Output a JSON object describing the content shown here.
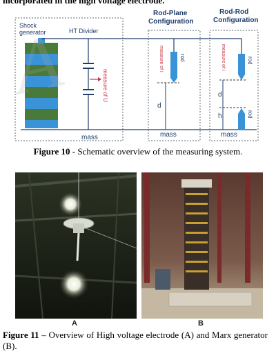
{
  "intro_fragment": "incorporated in the high voltage electrode.",
  "schematic": {
    "shock_generator": [
      "Shock",
      "generator"
    ],
    "ht_divider": "HT Divider",
    "measure_u": "measure of U",
    "rod_plane_title": [
      "Rod-Plane",
      "Configuration"
    ],
    "rod_rod_title": [
      "Rod-Rod",
      "Configuration"
    ],
    "measure_i": "measure of i",
    "rod": "rod",
    "d": "d",
    "h": "h",
    "mass": "mass",
    "colors": {
      "green": "#4a7a3a",
      "blue": "#3a93d6",
      "line": "#1f3d6b",
      "red": "#c8323c"
    }
  },
  "figure10": {
    "label": "Figure 10",
    "caption": " - Schematic overview of the measuring system."
  },
  "photos": {
    "a_label": "A",
    "b_label": "B"
  },
  "figure11": {
    "label": "Figure 11",
    "caption": " – Overview of High voltage electrode (A) and Marx generator (B)."
  },
  "watermark": "A"
}
